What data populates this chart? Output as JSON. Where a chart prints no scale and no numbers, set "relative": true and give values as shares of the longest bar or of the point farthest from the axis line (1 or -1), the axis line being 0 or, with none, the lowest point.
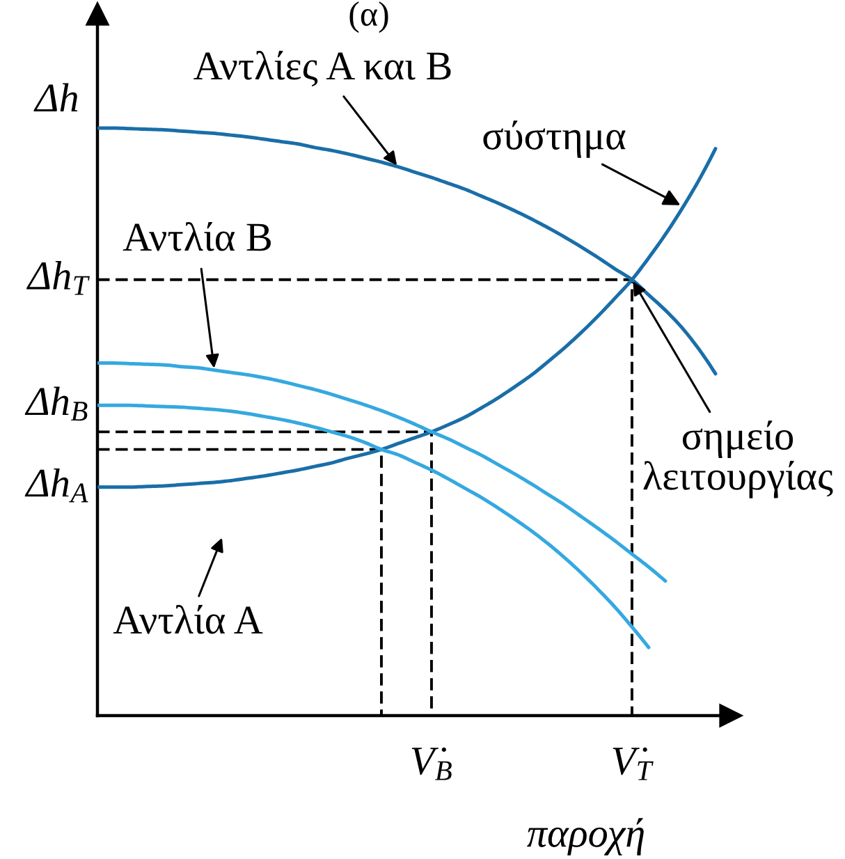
{
  "chart_data": {
    "type": "line",
    "title": "(α)",
    "xlabel": "παροχή",
    "ylabel": "Δh",
    "relative": true,
    "categories": [
      null,
      null,
      null,
      null,
      null,
      null,
      null,
      null,
      null,
      null,
      null,
      null,
      null,
      null,
      null,
      null,
      null,
      null,
      null,
      null,
      "V̇$_{B}$",
      null,
      null,
      null,
      null,
      null,
      null,
      null,
      null,
      null,
      null,
      null,
      "V̇$_{T}$",
      null,
      null,
      null,
      null,
      null
    ],
    "series": [
      {
        "name": "Αντλίες Α και Β",
        "color": "#1a6ea8",
        "values": [
          1.0,
          1.0,
          0.999,
          0.998,
          0.997,
          0.995,
          0.993,
          0.991,
          0.988,
          0.985,
          0.981,
          0.977,
          0.973,
          0.967,
          0.962,
          0.956,
          0.949,
          0.942,
          0.934,
          0.925,
          0.916,
          0.906,
          0.896,
          0.884,
          0.872,
          0.859,
          0.845,
          0.83,
          0.814,
          0.797,
          0.779,
          0.76,
          0.742,
          0.716,
          0.69,
          0.66,
          0.624,
          0.582
        ]
      },
      {
        "color": "#1a6ea8",
        "values": [
          0.389,
          0.389,
          0.389,
          0.39,
          0.391,
          0.393,
          0.395,
          0.397,
          0.4,
          0.404,
          0.408,
          0.413,
          0.418,
          0.424,
          0.43,
          0.438,
          0.445,
          0.453,
          0.463,
          0.473,
          0.483,
          0.495,
          0.508,
          0.524,
          0.541,
          0.56,
          0.58,
          0.603,
          0.627,
          0.653,
          0.681,
          0.711,
          0.742,
          0.779,
          0.819,
          0.863,
          0.911,
          0.965
        ]
      },
      {
        "name": "Αντλία Β",
        "color": "#35a8e0",
        "values": [
          0.6,
          0.6,
          0.599,
          0.598,
          0.597,
          0.594,
          0.592,
          0.588,
          0.584,
          0.58,
          0.575,
          0.569,
          0.562,
          0.555,
          0.547,
          0.538,
          0.529,
          0.519,
          0.508,
          0.496,
          0.483,
          0.471,
          0.457,
          0.443,
          0.427,
          0.411,
          0.394,
          0.376,
          0.358,
          0.338,
          0.318,
          0.297,
          0.275,
          0.253,
          0.229,
          null,
          null,
          null
        ]
      },
      {
        "color": "#35a8e0",
        "values": [
          0.528,
          0.528,
          0.528,
          0.527,
          0.526,
          0.525,
          0.523,
          0.521,
          0.518,
          0.514,
          0.509,
          0.504,
          0.498,
          0.491,
          0.483,
          0.475,
          0.465,
          0.453,
          0.444,
          0.431,
          0.418,
          0.403,
          0.387,
          0.371,
          0.353,
          0.334,
          0.314,
          0.292,
          0.268,
          0.242,
          0.214,
          0.184,
          0.151,
          0.116,
          null,
          null,
          null,
          null
        ]
      },
      {
        "type": "step",
        "color": "#000000",
        "line_style": "dashed",
        "values": [
          0.742,
          0.742,
          0.742,
          0.742,
          0.742,
          0.742,
          0.742,
          0.742,
          0.742,
          0.742,
          0.742,
          0.742,
          0.742,
          0.742,
          0.742,
          0.742,
          0.742,
          0.742,
          0.742,
          0.742,
          0.742,
          0.742,
          0.742,
          0.742,
          0.742,
          0.742,
          0.742,
          0.742,
          0.742,
          0.742,
          0.742,
          0.742,
          0,
          null,
          null,
          null,
          null,
          null
        ]
      },
      {
        "type": "step",
        "color": "#000000",
        "line_style": "dashed",
        "values": [
          0.483,
          0.483,
          0.483,
          0.483,
          0.483,
          0.483,
          0.483,
          0.483,
          0.483,
          0.483,
          0.483,
          0.483,
          0.483,
          0.483,
          0.483,
          0.483,
          0.483,
          0.483,
          0.483,
          0.483,
          0,
          null,
          null,
          null,
          null,
          null,
          null,
          null,
          null,
          null,
          null,
          null,
          null,
          null,
          null,
          null,
          null,
          null
        ]
      },
      {
        "type": "step",
        "color": "#000000",
        "line_style": "dashed",
        "values": [
          0.453,
          0.453,
          0.453,
          0.453,
          0.453,
          0.453,
          0.453,
          0.453,
          0.453,
          0.453,
          0.453,
          0.453,
          0.453,
          0.453,
          0.453,
          0.453,
          0.453,
          0,
          null,
          null,
          null,
          null,
          null,
          null,
          null,
          null,
          null,
          null,
          null,
          null,
          null,
          null,
          null,
          null,
          null,
          null,
          null,
          null
        ]
      }
    ],
    "annotations": [
      "σύστημα",
      "Αντλία Α",
      {
        "text": "σημείο\nλειτουργίας",
        "x": "V̇$_{T}$",
        "y": 0.742
      },
      "Δh$_{T}$",
      "Δh$_{B}$",
      "Δh$_{A}$"
    ]
  }
}
